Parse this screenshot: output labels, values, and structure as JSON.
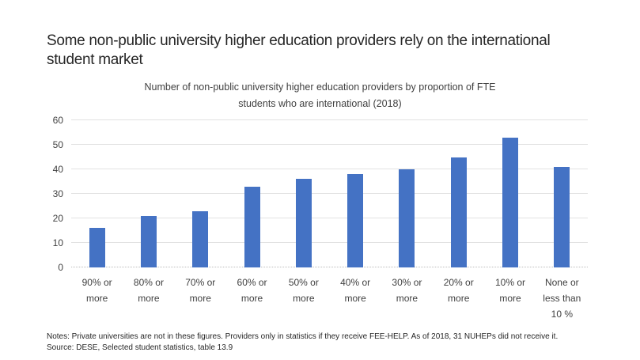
{
  "header": {
    "line1": "Some non-public university higher education providers rely on the international",
    "line2": "student market"
  },
  "chart_data": {
    "type": "bar",
    "title": "Number of non-public university higher education providers by proportion of FTE students who are international (2018)",
    "title_lines": [
      "Number of non-public university higher education providers by proportion of FTE",
      "students who are international (2018)"
    ],
    "categories": [
      "90% or more",
      "80% or more",
      "70% or more",
      "60% or more",
      "50% or more",
      "40% or more",
      "30% or more",
      "20% or more",
      "10% or more",
      "None or less than 10 %"
    ],
    "category_display_lines": [
      [
        "90% or",
        "more"
      ],
      [
        "80% or",
        "more"
      ],
      [
        "70% or",
        "more"
      ],
      [
        "60% or",
        "more"
      ],
      [
        "50% or",
        "more"
      ],
      [
        "40% or",
        "more"
      ],
      [
        "30% or",
        "more"
      ],
      [
        "20% or",
        "more"
      ],
      [
        "10% or",
        "more"
      ],
      [
        "None or",
        "less than",
        "10 %"
      ]
    ],
    "values": [
      16,
      21,
      23,
      33,
      36,
      38,
      40,
      45,
      53,
      41
    ],
    "xlabel": "",
    "ylabel": "",
    "ylim": [
      0,
      60
    ],
    "yticks": [
      0,
      10,
      20,
      30,
      40,
      50,
      60
    ],
    "grid": true,
    "legend": "none",
    "bar_color": "#4472C4",
    "gridline_color": "#E2E2E2",
    "axis_label_color": "#404040"
  },
  "footer": {
    "notes": "Notes: Private universities are not in these figures. Providers only in statistics if they receive FEE-HELP. As of 2018, 31 NUHEPs did not receive it.",
    "source": "Source: DESE, Selected student statistics, table 13.9"
  }
}
